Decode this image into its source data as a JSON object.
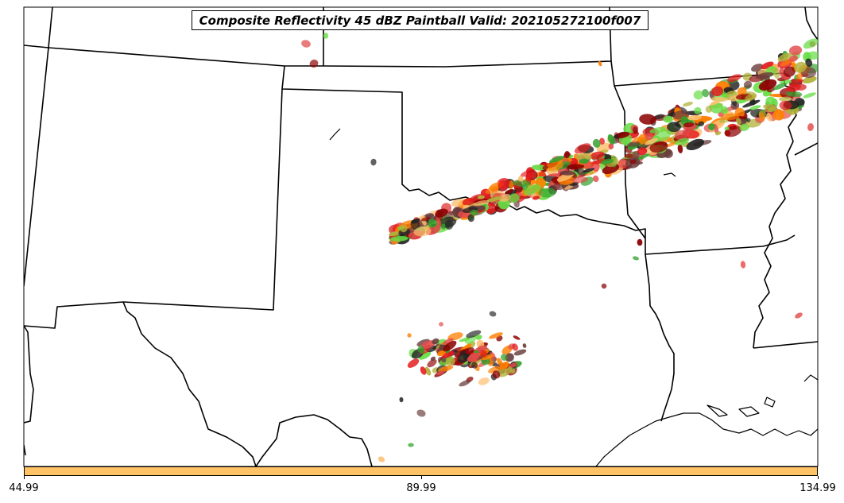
{
  "title": "Composite Reflectivity 45 dBZ Paintball Valid: 202105272100f007",
  "colorbar": {
    "color": "#ffc366",
    "tick_labels": [
      "44.99",
      "89.99",
      "134.99"
    ],
    "tick_values": [
      44.99,
      89.99,
      134.99
    ],
    "range": [
      44.99,
      134.99
    ]
  },
  "colors": {
    "members": [
      "#e31a1c",
      "#ff7f00",
      "#fdbf6f",
      "#b2b23a",
      "#33a02c",
      "#6a3d3d",
      "#222222",
      "#8b0000",
      "#e24a4a",
      "#66dd44"
    ],
    "boundaries": "#000000"
  }
}
